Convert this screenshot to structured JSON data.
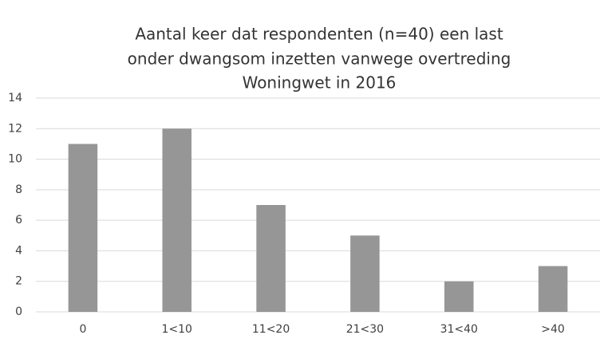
{
  "chart_data": {
    "type": "bar",
    "title": [
      "Aantal keer dat respondenten (n=40) een last",
      "onder dwangsom inzetten vanwege overtreding",
      "Woningwet in 2016"
    ],
    "categories": [
      "0",
      "1<10",
      "11<20",
      "21<30",
      "31<40",
      ">40"
    ],
    "values": [
      11,
      12,
      7,
      5,
      2,
      3
    ],
    "color": "#969696",
    "ylim": [
      0,
      14
    ],
    "yticks": [
      0,
      2,
      4,
      6,
      8,
      10,
      12,
      14
    ],
    "grid": true
  }
}
